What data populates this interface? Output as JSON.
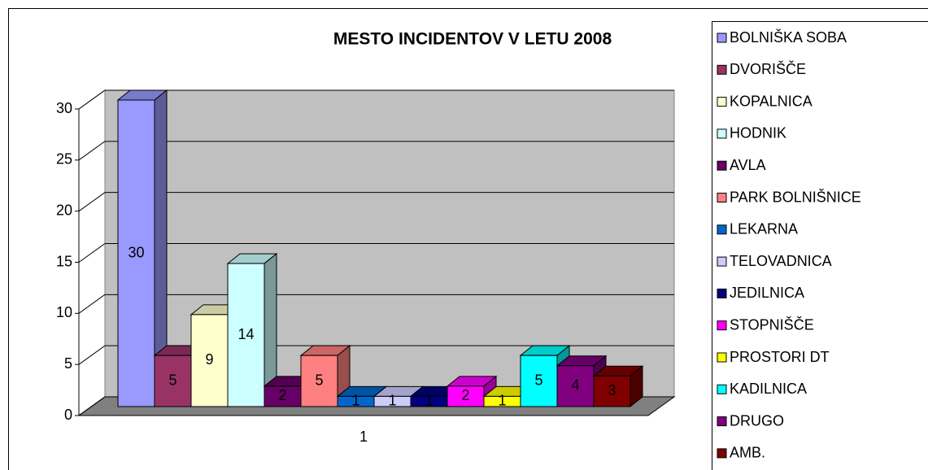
{
  "chart_data": {
    "type": "bar3d",
    "title": "MESTO INCIDENTOV V LETU 2008",
    "categories": [
      "1"
    ],
    "ylim": [
      0,
      30
    ],
    "yticks": [
      0,
      5,
      10,
      15,
      20,
      25,
      30
    ],
    "grid": true,
    "legend": "right",
    "series": [
      {
        "name": "BOLNIŠKA SOBA",
        "color": "#9999ff",
        "values": [
          30
        ]
      },
      {
        "name": "DVORIŠČE",
        "color": "#993366",
        "values": [
          5
        ]
      },
      {
        "name": "KOPALNICA",
        "color": "#ffffcc",
        "values": [
          9
        ]
      },
      {
        "name": "HODNIK",
        "color": "#ccffff",
        "values": [
          14
        ]
      },
      {
        "name": "AVLA",
        "color": "#660066",
        "values": [
          2
        ]
      },
      {
        "name": "PARK BOLNIŠNICE",
        "color": "#ff8080",
        "values": [
          5
        ]
      },
      {
        "name": "LEKARNA",
        "color": "#0066cc",
        "values": [
          1
        ]
      },
      {
        "name": "TELOVADNICA",
        "color": "#ccccff",
        "values": [
          1
        ]
      },
      {
        "name": "JEDILNICA",
        "color": "#000080",
        "values": [
          1
        ]
      },
      {
        "name": "STOPNIŠČE",
        "color": "#ff00ff",
        "values": [
          2
        ]
      },
      {
        "name": "PROSTORI DT",
        "color": "#ffff00",
        "values": [
          1
        ]
      },
      {
        "name": "KADILNICA",
        "color": "#00ffff",
        "values": [
          5
        ]
      },
      {
        "name": "DRUGO",
        "color": "#800080",
        "values": [
          4
        ]
      },
      {
        "name": "AMB.",
        "color": "#800000",
        "values": [
          3
        ]
      }
    ]
  }
}
